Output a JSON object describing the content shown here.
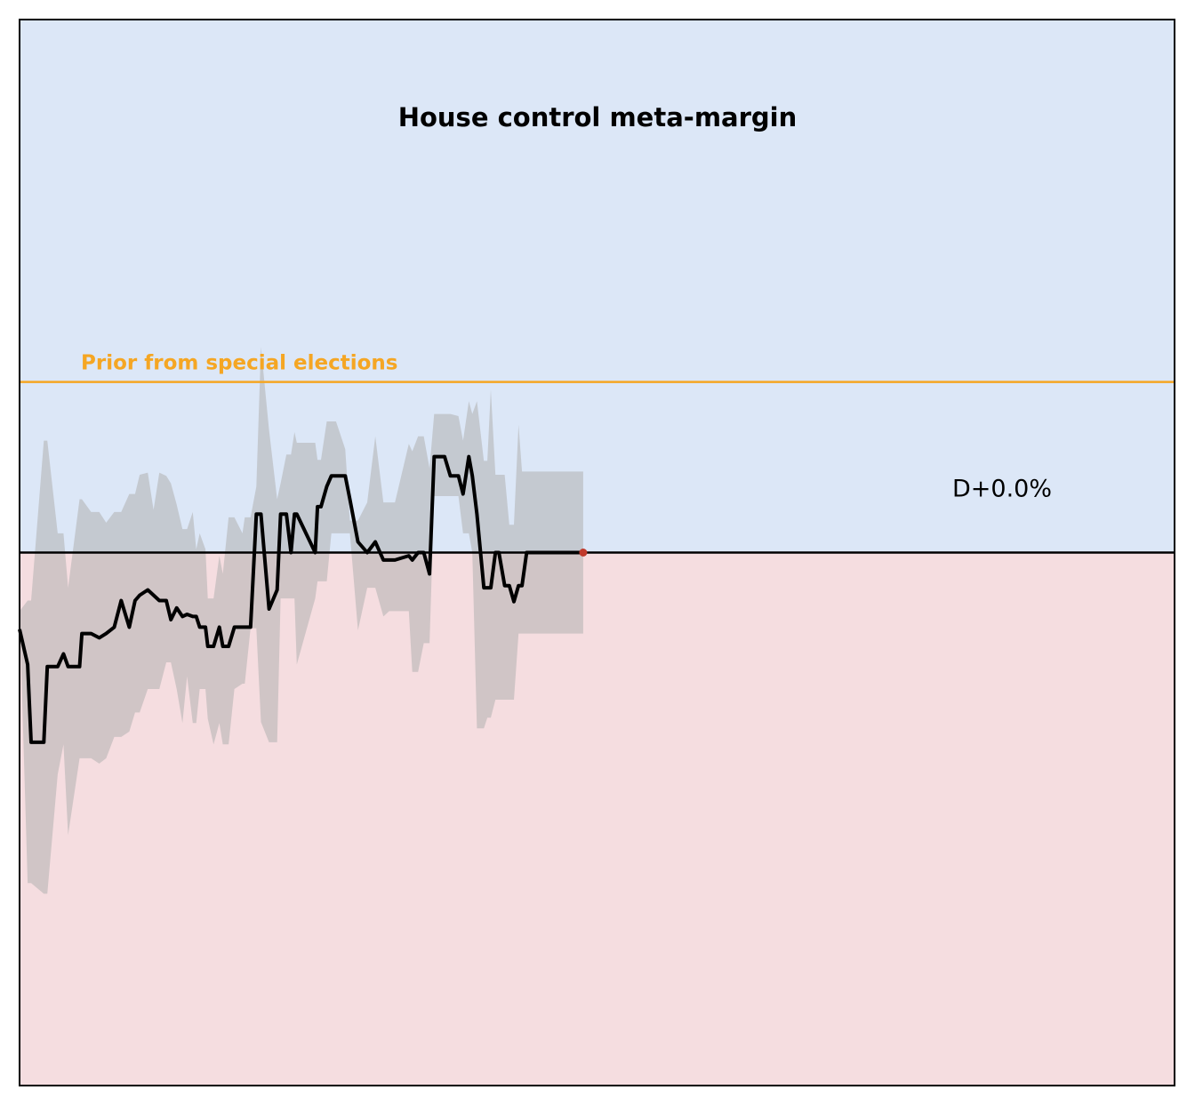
{
  "chart_data": {
    "type": "line",
    "title": "House control meta-margin",
    "xlabel": "",
    "ylabel": "",
    "xlim": [
      0,
      100
    ],
    "ylim": [
      -5.0,
      5.0
    ],
    "grid": false,
    "zero_line": 0,
    "prior": {
      "label": "Prior from special elections",
      "value": 1.6,
      "color": "#f5a623"
    },
    "current": {
      "label": "D+0.0%",
      "value": 0.0,
      "marker_color": "#c0392b"
    },
    "regions": {
      "dem_color": "#dce7f7",
      "rep_color": "#f5dde0"
    },
    "band_color": "#b0b0b0",
    "line_color": "#000000",
    "series": [
      {
        "x": [
          0.0,
          0.7,
          1.0,
          2.1,
          2.4,
          3.3,
          3.8,
          4.2,
          5.2,
          5.4,
          6.2,
          6.9,
          7.5,
          8.2,
          8.8,
          9.5,
          10.0,
          10.4,
          11.1,
          11.6,
          12.1,
          12.7,
          13.1,
          13.6,
          14.1,
          14.5,
          15.0,
          15.3,
          15.6,
          16.1,
          16.3,
          16.8,
          17.3,
          17.6,
          18.1,
          18.6,
          19.3,
          19.5,
          20.0,
          20.5,
          20.9,
          21.6,
          22.3,
          22.6,
          23.1,
          23.5,
          23.8,
          24.0,
          25.6,
          25.8,
          26.1,
          26.6,
          27.0,
          27.4,
          28.2,
          28.6,
          29.3,
          30.1,
          30.8,
          31.5,
          32.0,
          32.5,
          33.7,
          34.0,
          34.5,
          35.0,
          35.5,
          35.9,
          36.4,
          36.8,
          37.3,
          38.0,
          38.4,
          38.9,
          39.2,
          39.6,
          40.2,
          40.5,
          40.8,
          41.2,
          41.5,
          42.0,
          42.4,
          42.8,
          43.2,
          43.5,
          43.9,
          44.2,
          44.5,
          45.0,
          45.4,
          45.9,
          46.3,
          46.5,
          47.1,
          47.8,
          48.3,
          48.8
        ],
        "y": [
          -0.72,
          -1.05,
          -1.78,
          -1.78,
          -1.07,
          -1.07,
          -0.95,
          -1.07,
          -1.07,
          -0.76,
          -0.76,
          -0.8,
          -0.76,
          -0.7,
          -0.45,
          -0.7,
          -0.45,
          -0.4,
          -0.35,
          -0.4,
          -0.45,
          -0.45,
          -0.63,
          -0.52,
          -0.6,
          -0.58,
          -0.6,
          -0.6,
          -0.7,
          -0.7,
          -0.88,
          -0.88,
          -0.7,
          -0.88,
          -0.88,
          -0.7,
          -0.7,
          -0.7,
          -0.7,
          0.36,
          0.36,
          -0.53,
          -0.35,
          0.36,
          0.36,
          0.0,
          0.36,
          0.36,
          0.0,
          0.43,
          0.43,
          0.62,
          0.72,
          0.72,
          0.72,
          0.5,
          0.1,
          0.0,
          0.1,
          -0.07,
          -0.07,
          -0.07,
          -0.03,
          -0.07,
          0.0,
          0.0,
          -0.2,
          0.9,
          0.9,
          0.9,
          0.72,
          0.72,
          0.55,
          0.9,
          0.72,
          0.36,
          -0.33,
          -0.33,
          -0.33,
          0.0,
          0.0,
          -0.31,
          -0.31,
          -0.46,
          -0.31,
          -0.31,
          0.0,
          0.0,
          0.0,
          0.0,
          0.0,
          0.0,
          0.0,
          0.0,
          0.0,
          0.0,
          0.0,
          0.0
        ],
        "band_upper": [
          -0.55,
          -0.45,
          -0.45,
          1.05,
          1.05,
          0.18,
          0.18,
          -0.33,
          0.5,
          0.5,
          0.38,
          0.38,
          0.28,
          0.38,
          0.38,
          0.55,
          0.55,
          0.73,
          0.75,
          0.4,
          0.75,
          0.72,
          0.65,
          0.45,
          0.22,
          0.22,
          0.38,
          0.03,
          0.18,
          0.03,
          -0.43,
          -0.43,
          -0.03,
          -0.2,
          0.33,
          0.33,
          0.18,
          0.33,
          0.33,
          0.62,
          1.93,
          1.15,
          0.5,
          0.65,
          0.92,
          0.92,
          1.13,
          1.03,
          1.03,
          0.87,
          0.87,
          1.23,
          1.23,
          1.23,
          0.97,
          0.3,
          0.3,
          0.47,
          1.09,
          0.47,
          0.47,
          0.47,
          1.02,
          0.95,
          1.09,
          1.09,
          0.79,
          1.3,
          1.3,
          1.3,
          1.3,
          1.28,
          1.05,
          1.42,
          1.3,
          1.42,
          0.86,
          0.86,
          1.53,
          0.73,
          0.73,
          0.73,
          0.26,
          0.26,
          1.2,
          0.76,
          0.76,
          0.76,
          0.76,
          0.76,
          0.76,
          0.76,
          0.76,
          0.76,
          0.76,
          0.76,
          0.76,
          0.76
        ],
        "band_lower": [
          -0.55,
          -3.1,
          -3.1,
          -3.2,
          -3.2,
          -2.08,
          -1.8,
          -2.65,
          -1.93,
          -1.93,
          -1.93,
          -1.98,
          -1.93,
          -1.73,
          -1.73,
          -1.68,
          -1.5,
          -1.5,
          -1.28,
          -1.28,
          -1.28,
          -1.03,
          -1.03,
          -1.28,
          -1.6,
          -1.16,
          -1.6,
          -1.6,
          -1.28,
          -1.28,
          -1.56,
          -1.8,
          -1.6,
          -1.8,
          -1.8,
          -1.28,
          -1.23,
          -1.23,
          -0.71,
          -0.71,
          -1.59,
          -1.78,
          -1.78,
          -0.43,
          -0.43,
          -0.43,
          -0.43,
          -1.05,
          -0.43,
          -0.27,
          -0.27,
          -0.27,
          0.18,
          0.18,
          0.18,
          0.18,
          -0.73,
          -0.33,
          -0.33,
          -0.6,
          -0.55,
          -0.55,
          -0.55,
          -1.12,
          -1.12,
          -0.85,
          -0.85,
          0.53,
          0.53,
          0.53,
          0.53,
          0.53,
          0.18,
          0.18,
          0.0,
          -1.65,
          -1.65,
          -1.55,
          -1.55,
          -1.38,
          -1.38,
          -1.38,
          -1.38,
          -1.38,
          -0.76,
          -0.76,
          -0.76,
          -0.76,
          -0.76,
          -0.76,
          -0.76,
          -0.76,
          -0.76,
          -0.76,
          -0.76,
          -0.76,
          -0.76,
          -0.76
        ]
      }
    ]
  }
}
